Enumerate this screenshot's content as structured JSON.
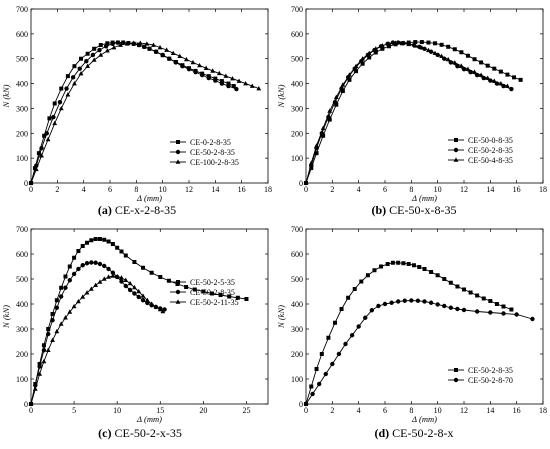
{
  "chart_data": [
    {
      "type": "line",
      "caption_letter": "(a)",
      "caption_text": "CE-x-2-8-35",
      "xlabel": "Δ (mm)",
      "ylabel": "N (kN)",
      "xlim": [
        0,
        18
      ],
      "ylim": [
        0,
        700
      ],
      "xticks": [
        0,
        2,
        4,
        6,
        8,
        10,
        12,
        14,
        16,
        18
      ],
      "yticks": [
        0,
        100,
        200,
        300,
        400,
        500,
        600,
        700
      ],
      "grid": false,
      "legend_position": "bottom-right",
      "series": [
        {
          "name": "CE-0-2-8-35",
          "marker": "square",
          "x": [
            0,
            0.3,
            0.6,
            1,
            1.4,
            1.8,
            2.3,
            2.8,
            3.3,
            3.8,
            4.3,
            4.8,
            5.3,
            5.8,
            6.2,
            6.6,
            7,
            7.4,
            7.8,
            8.2,
            8.6,
            9,
            9.5,
            10,
            10.5,
            11,
            11.5,
            12,
            12.5,
            13,
            13.5,
            14,
            14.5,
            15,
            15.4
          ],
          "y": [
            0,
            60,
            120,
            190,
            260,
            320,
            380,
            430,
            470,
            500,
            520,
            540,
            555,
            562,
            565,
            565,
            565,
            563,
            560,
            555,
            548,
            540,
            528,
            514,
            500,
            487,
            474,
            462,
            451,
            440,
            430,
            420,
            410,
            400,
            390
          ]
        },
        {
          "name": "CE-50-2-8-35",
          "marker": "circle",
          "x": [
            0,
            0.4,
            0.8,
            1.2,
            1.7,
            2.2,
            2.7,
            3.2,
            3.7,
            4.2,
            4.7,
            5.2,
            5.7,
            6.2,
            6.6,
            7,
            7.4,
            7.8,
            8.2,
            8.6,
            9,
            9.5,
            10,
            10.5,
            11,
            11.5,
            12,
            12.5,
            13,
            13.5,
            14,
            14.5,
            15,
            15.6
          ],
          "y": [
            0,
            70,
            140,
            200,
            265,
            325,
            380,
            425,
            460,
            490,
            515,
            535,
            550,
            560,
            565,
            565,
            563,
            560,
            555,
            548,
            540,
            528,
            515,
            500,
            485,
            470,
            458,
            446,
            434,
            422,
            412,
            400,
            390,
            378
          ]
        },
        {
          "name": "CE-100-2-8-35",
          "marker": "triangle",
          "x": [
            0,
            0.4,
            0.8,
            1.3,
            1.8,
            2.3,
            2.8,
            3.3,
            3.8,
            4.3,
            4.8,
            5.3,
            5.8,
            6.3,
            6.8,
            7.3,
            7.8,
            8.3,
            8.8,
            9.3,
            9.8,
            10.3,
            10.8,
            11.3,
            11.8,
            12.3,
            12.8,
            13.3,
            13.8,
            14.3,
            14.8,
            15.3,
            15.8,
            16.3,
            16.8,
            17.3
          ],
          "y": [
            0,
            55,
            110,
            175,
            240,
            300,
            355,
            400,
            440,
            470,
            495,
            515,
            532,
            545,
            555,
            560,
            563,
            563,
            560,
            555,
            545,
            535,
            522,
            510,
            497,
            485,
            473,
            462,
            451,
            441,
            430,
            420,
            410,
            400,
            390,
            380
          ]
        }
      ]
    },
    {
      "type": "line",
      "caption_letter": "(b)",
      "caption_text": "CE-50-x-8-35",
      "xlabel": "Δ (mm)",
      "ylabel": "N (kN)",
      "xlim": [
        0,
        18
      ],
      "ylim": [
        0,
        700
      ],
      "xticks": [
        0,
        2,
        4,
        6,
        8,
        10,
        12,
        14,
        16,
        18
      ],
      "yticks": [
        0,
        100,
        200,
        300,
        400,
        500,
        600,
        700
      ],
      "grid": false,
      "legend_position": "bottom-right",
      "series": [
        {
          "name": "CE-50-0-8-35",
          "marker": "square",
          "x": [
            0,
            0.4,
            0.8,
            1.3,
            1.8,
            2.3,
            2.8,
            3.3,
            3.8,
            4.3,
            4.8,
            5.3,
            5.8,
            6.3,
            6.8,
            7.3,
            7.8,
            8.3,
            8.8,
            9.3,
            9.8,
            10.3,
            10.8,
            11.3,
            11.8,
            12.3,
            12.8,
            13.3,
            13.8,
            14.3,
            14.8,
            15.3,
            15.8,
            16.3
          ],
          "y": [
            0,
            60,
            120,
            190,
            255,
            315,
            370,
            415,
            450,
            480,
            505,
            525,
            540,
            550,
            558,
            562,
            565,
            567,
            567,
            565,
            562,
            556,
            548,
            538,
            526,
            512,
            498,
            485,
            472,
            460,
            448,
            436,
            425,
            415
          ]
        },
        {
          "name": "CE-50-2-8-35",
          "marker": "circle",
          "x": [
            0,
            0.4,
            0.8,
            1.2,
            1.7,
            2.2,
            2.7,
            3.2,
            3.7,
            4.2,
            4.7,
            5.2,
            5.7,
            6.2,
            6.6,
            7,
            7.4,
            7.8,
            8.2,
            8.6,
            9,
            9.5,
            10,
            10.5,
            11,
            11.5,
            12,
            12.5,
            13,
            13.5,
            14,
            14.5,
            15,
            15.6
          ],
          "y": [
            0,
            70,
            140,
            200,
            265,
            325,
            380,
            425,
            460,
            490,
            515,
            535,
            550,
            560,
            565,
            565,
            563,
            560,
            555,
            548,
            540,
            528,
            515,
            500,
            485,
            470,
            458,
            446,
            434,
            422,
            412,
            400,
            390,
            378
          ]
        },
        {
          "name": "CE-50-4-8-35",
          "marker": "triangle",
          "x": [
            0,
            0.4,
            0.8,
            1.3,
            1.8,
            2.3,
            2.8,
            3.3,
            3.8,
            4.3,
            4.8,
            5.3,
            5.8,
            6.3,
            6.8,
            7.3,
            7.8,
            8.3,
            8.8,
            9.3,
            9.8,
            10.3,
            10.8,
            11.3,
            11.8,
            12.3,
            12.8,
            13.3,
            13.8,
            14.3,
            14.8,
            15.3
          ],
          "y": [
            0,
            80,
            150,
            220,
            290,
            345,
            395,
            435,
            470,
            500,
            522,
            540,
            553,
            560,
            563,
            562,
            558,
            552,
            544,
            534,
            522,
            510,
            497,
            484,
            471,
            458,
            446,
            434,
            422,
            410,
            400,
            390
          ]
        }
      ]
    },
    {
      "type": "line",
      "caption_letter": "(c)",
      "caption_text": "CE-50-2-x-35",
      "xlabel": "Δ (mm)",
      "ylabel": "N (kN)",
      "xlim": [
        0,
        27.5
      ],
      "ylim": [
        0,
        700
      ],
      "xticks": [
        0,
        5,
        10,
        15,
        20,
        25
      ],
      "yticks": [
        0,
        100,
        200,
        300,
        400,
        500,
        600,
        700
      ],
      "grid": false,
      "legend_position": "bottom-right",
      "series": [
        {
          "name": "CE-50-2-5-35",
          "marker": "square",
          "x": [
            0,
            0.5,
            1,
            1.5,
            2,
            2.5,
            3,
            3.5,
            4,
            4.5,
            5,
            5.5,
            6,
            6.5,
            7,
            7.5,
            8,
            8.5,
            9,
            9.5,
            10,
            10.5,
            11,
            12,
            13,
            14,
            15,
            16,
            17,
            18,
            19,
            20,
            21,
            22,
            23,
            24,
            25
          ],
          "y": [
            0,
            80,
            160,
            235,
            300,
            360,
            415,
            465,
            510,
            550,
            585,
            612,
            632,
            645,
            655,
            660,
            660,
            657,
            650,
            640,
            625,
            610,
            594,
            568,
            545,
            525,
            508,
            493,
            480,
            468,
            458,
            450,
            442,
            436,
            430,
            425,
            420
          ]
        },
        {
          "name": "CE-50-2-8-35",
          "marker": "circle",
          "x": [
            0,
            0.5,
            1,
            1.5,
            2,
            2.5,
            3,
            3.5,
            4,
            4.5,
            5,
            5.5,
            6,
            6.5,
            7,
            7.5,
            8,
            8.5,
            9,
            9.5,
            10,
            10.5,
            11,
            11.5,
            12,
            12.5,
            13,
            13.5,
            14,
            14.5,
            15,
            15.5
          ],
          "y": [
            0,
            75,
            150,
            215,
            280,
            335,
            385,
            430,
            465,
            495,
            520,
            540,
            555,
            563,
            566,
            565,
            560,
            552,
            540,
            525,
            508,
            490,
            472,
            456,
            442,
            428,
            415,
            404,
            395,
            388,
            382,
            378
          ]
        },
        {
          "name": "CE-50-2-11-35",
          "marker": "triangle",
          "x": [
            0,
            0.5,
            1,
            1.5,
            2,
            2.5,
            3,
            3.5,
            4,
            4.5,
            5,
            5.5,
            6,
            6.5,
            7,
            7.5,
            8,
            8.5,
            9,
            9.5,
            10,
            10.5,
            11,
            11.5,
            12,
            12.5,
            13,
            13.5,
            14,
            14.5,
            15,
            15.3
          ],
          "y": [
            0,
            60,
            120,
            170,
            215,
            255,
            290,
            320,
            345,
            368,
            390,
            410,
            428,
            445,
            460,
            475,
            488,
            500,
            508,
            512,
            510,
            505,
            495,
            482,
            466,
            450,
            432,
            415,
            400,
            388,
            378,
            370
          ]
        }
      ]
    },
    {
      "type": "line",
      "caption_letter": "(d)",
      "caption_text": "CE-50-2-8-x",
      "xlabel": "Δ (mm)",
      "ylabel": "N (kN)",
      "xlim": [
        0,
        18
      ],
      "ylim": [
        0,
        700
      ],
      "xticks": [
        0,
        2,
        4,
        6,
        8,
        10,
        12,
        14,
        16,
        18
      ],
      "yticks": [
        0,
        100,
        200,
        300,
        400,
        500,
        600,
        700
      ],
      "grid": false,
      "legend_position": "bottom-right",
      "series": [
        {
          "name": "CE-50-2-8-35",
          "marker": "square",
          "x": [
            0,
            0.4,
            0.8,
            1.2,
            1.7,
            2.2,
            2.7,
            3.2,
            3.7,
            4.2,
            4.7,
            5.2,
            5.7,
            6.2,
            6.6,
            7,
            7.4,
            7.8,
            8.2,
            8.6,
            9,
            9.5,
            10,
            10.5,
            11,
            11.5,
            12,
            12.5,
            13,
            13.5,
            14,
            14.5,
            15,
            15.6
          ],
          "y": [
            0,
            70,
            140,
            200,
            265,
            325,
            380,
            425,
            460,
            490,
            515,
            535,
            550,
            560,
            565,
            565,
            563,
            560,
            555,
            548,
            540,
            528,
            515,
            500,
            485,
            470,
            458,
            446,
            434,
            422,
            412,
            400,
            390,
            378
          ]
        },
        {
          "name": "CE-50-2-8-70",
          "marker": "circle",
          "x": [
            0,
            0.5,
            1,
            1.5,
            2,
            2.5,
            3,
            3.5,
            4,
            4.5,
            5,
            5.5,
            6,
            6.5,
            7,
            7.5,
            8,
            8.5,
            9,
            9.5,
            10,
            10.5,
            11,
            11.5,
            12,
            13,
            14,
            15,
            16,
            17.2
          ],
          "y": [
            0,
            40,
            80,
            120,
            160,
            200,
            240,
            275,
            310,
            345,
            375,
            392,
            400,
            405,
            410,
            413,
            414,
            413,
            410,
            405,
            398,
            392,
            385,
            380,
            376,
            370,
            366,
            362,
            358,
            340
          ]
        }
      ]
    }
  ]
}
